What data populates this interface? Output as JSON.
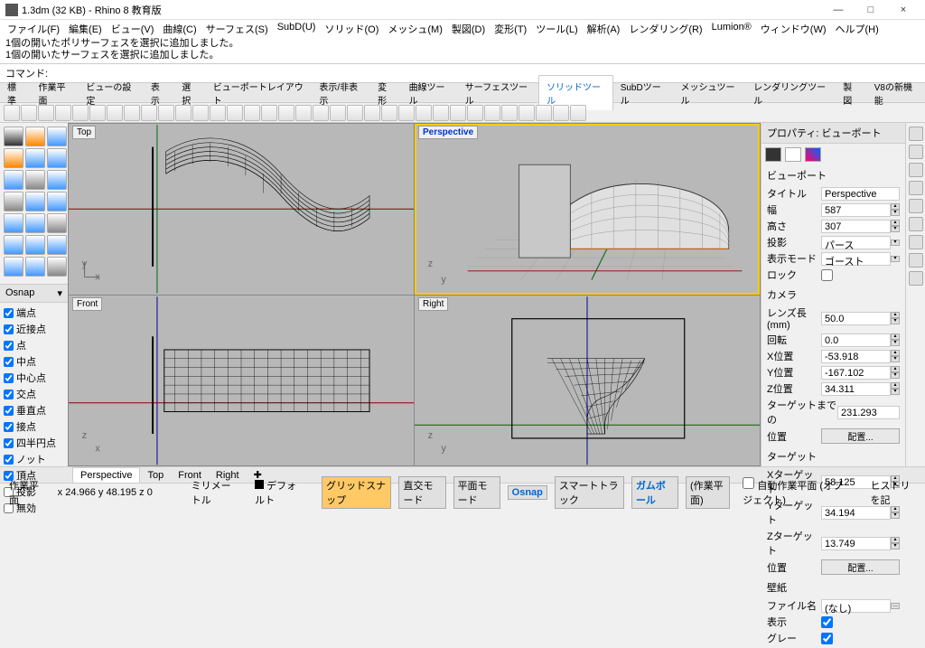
{
  "window": {
    "title": "1.3dm (32 KB) - Rhino 8 教育版"
  },
  "menu": [
    "ファイル(F)",
    "編集(E)",
    "ビュー(V)",
    "曲線(C)",
    "サーフェス(S)",
    "SubD(U)",
    "ソリッド(O)",
    "メッシュ(M)",
    "製図(D)",
    "変形(T)",
    "ツール(L)",
    "解析(A)",
    "レンダリング(R)",
    "Lumion®",
    "ウィンドウ(W)",
    "ヘルプ(H)"
  ],
  "cmdlog": [
    "1個の開いたポリサーフェスを選択に追加しました。",
    "1個の開いたサーフェスを選択に追加しました。"
  ],
  "cmdprompt": "コマンド:",
  "tabs": [
    "標準",
    "作業平面",
    "ビューの設定",
    "表示",
    "選択",
    "ビューポートレイアウト",
    "表示/非表示",
    "変形",
    "曲線ツール",
    "サーフェスツール",
    "ソリッドツール",
    "SubDツール",
    "メッシュツール",
    "レンダリングツール",
    "製図",
    "V8の新機能"
  ],
  "activeTab": 10,
  "viewports": {
    "top": "Top",
    "persp": "Perspective",
    "front": "Front",
    "right": "Right"
  },
  "osnap": {
    "title": "Osnap",
    "items": [
      {
        "label": "端点",
        "checked": true
      },
      {
        "label": "近接点",
        "checked": true
      },
      {
        "label": "点",
        "checked": true
      },
      {
        "label": "中点",
        "checked": true
      },
      {
        "label": "中心点",
        "checked": true
      },
      {
        "label": "交点",
        "checked": true
      },
      {
        "label": "垂直点",
        "checked": true
      },
      {
        "label": "接点",
        "checked": true
      },
      {
        "label": "四半円点",
        "checked": true
      },
      {
        "label": "ノット",
        "checked": true
      },
      {
        "label": "頂点",
        "checked": true
      },
      {
        "label": "投影",
        "checked": false
      },
      {
        "label": "無効",
        "checked": false
      }
    ]
  },
  "props": {
    "header": "プロパティ: ビューポート",
    "sec_viewport": "ビューポート",
    "title_l": "タイトル",
    "title_v": "Perspective",
    "width_l": "幅",
    "width_v": "587",
    "height_l": "高さ",
    "height_v": "307",
    "proj_l": "投影",
    "proj_v": "パース",
    "disp_l": "表示モード",
    "disp_v": "ゴースト",
    "lock_l": "ロック",
    "sec_camera": "カメラ",
    "lens_l": "レンズ長 (mm)",
    "lens_v": "50.0",
    "rot_l": "回転",
    "rot_v": "0.0",
    "xpos_l": "X位置",
    "xpos_v": "-53.918",
    "ypos_l": "Y位置",
    "ypos_v": "-167.102",
    "zpos_l": "Z位置",
    "zpos_v": "34.311",
    "tdist_l": "ターゲットまでの",
    "tdist_v": "231.293",
    "pos_l": "位置",
    "place_btn": "配置...",
    "sec_target": "ターゲット",
    "xt_l": "Xターゲット",
    "xt_v": "58.125",
    "yt_l": "Yターゲット",
    "yt_v": "34.194",
    "zt_l": "Zターゲット",
    "zt_v": "13.749",
    "sec_wall": "壁紙",
    "file_l": "ファイル名",
    "file_v": "(なし)",
    "show_l": "表示",
    "gray_l": "グレー"
  },
  "bottomTabs": [
    "Perspective",
    "Top",
    "Front",
    "Right"
  ],
  "status": {
    "cplane": "作業平面",
    "coords": "x 24.966   y 48.195   z 0",
    "units": "ミリメートル",
    "layer": "デフォルト",
    "btns": [
      "グリッドスナップ",
      "直交モード",
      "平面モード",
      "Osnap",
      "スマートトラック",
      "ガムボール",
      "(作業平面)"
    ],
    "rec": "ヒストリを記",
    "auto": "自動作業平面 (オブジェクト)"
  },
  "colors": {
    "bg": "#b8b8b8",
    "grid": "#9a9a9a",
    "wire": "#000",
    "axis_x": "#8b0000",
    "axis_y": "#006400",
    "axis_z": "#00008b",
    "surf": "#d8d8d8"
  }
}
